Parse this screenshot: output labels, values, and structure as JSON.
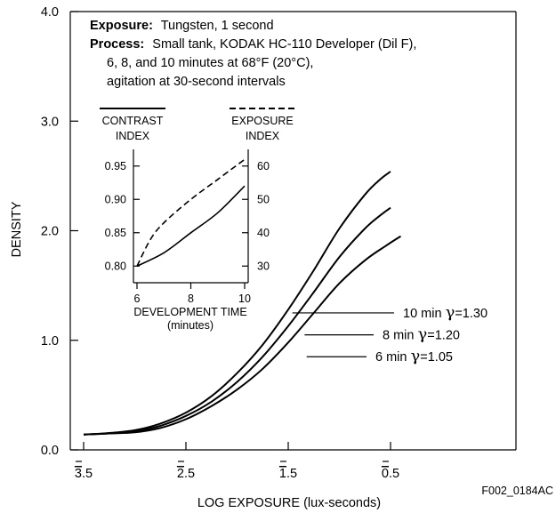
{
  "chart_data": {
    "type": "line",
    "xlabel": "LOG EXPOSURE (lux-seconds)",
    "ylabel": "DENSITY",
    "x_ticks": [
      {
        "value": 3.5,
        "bar": "3",
        "rest": ".5"
      },
      {
        "value": 2.5,
        "bar": "2",
        "rest": ".5"
      },
      {
        "value": 1.5,
        "bar": "1",
        "rest": ".5"
      },
      {
        "value": 0.5,
        "bar": "0",
        "rest": ".5"
      }
    ],
    "y_ticks": [
      "0.0",
      "1.0",
      "2.0",
      "3.0",
      "4.0"
    ],
    "ylim": [
      0,
      4
    ],
    "figure_id": "F002_0184AC",
    "info": {
      "exposure_label": "Exposure:",
      "exposure_value": "Tungsten, 1 second",
      "process_label": "Process:",
      "process_line1": "Small tank, KODAK HC-110 Developer (Dil F),",
      "process_line2": "6, 8, and 10 minutes at 68°F (20°C),",
      "process_line3": "agitation at 30-second intervals"
    },
    "series": [
      {
        "name": "10 min",
        "gamma": "=1.30",
        "label_x": 9.0,
        "anchor": [
          -1.46,
          1.25
        ],
        "points": [
          [
            -3.5,
            0.14
          ],
          [
            -3.3,
            0.15
          ],
          [
            -3.0,
            0.18
          ],
          [
            -2.75,
            0.24
          ],
          [
            -2.5,
            0.34
          ],
          [
            -2.25,
            0.49
          ],
          [
            -2.0,
            0.7
          ],
          [
            -1.75,
            0.96
          ],
          [
            -1.5,
            1.28
          ],
          [
            -1.25,
            1.64
          ],
          [
            -1.0,
            2.02
          ],
          [
            -0.75,
            2.33
          ],
          [
            -0.6,
            2.47
          ],
          [
            -0.5,
            2.54
          ]
        ]
      },
      {
        "name": "8 min",
        "gamma": "=1.20",
        "label_x": 8.8,
        "anchor": [
          -1.34,
          1.05
        ],
        "points": [
          [
            -3.5,
            0.14
          ],
          [
            -3.25,
            0.15
          ],
          [
            -3.0,
            0.17
          ],
          [
            -2.75,
            0.22
          ],
          [
            -2.5,
            0.31
          ],
          [
            -2.25,
            0.44
          ],
          [
            -2.0,
            0.62
          ],
          [
            -1.75,
            0.85
          ],
          [
            -1.5,
            1.13
          ],
          [
            -1.25,
            1.44
          ],
          [
            -1.0,
            1.76
          ],
          [
            -0.75,
            2.02
          ],
          [
            -0.6,
            2.14
          ],
          [
            -0.5,
            2.21
          ]
        ]
      },
      {
        "name": "6 min",
        "gamma": "=1.05",
        "label_x": 8.6,
        "anchor": [
          -1.32,
          0.85
        ],
        "points": [
          [
            -3.5,
            0.14
          ],
          [
            -3.25,
            0.15
          ],
          [
            -3.0,
            0.16
          ],
          [
            -2.75,
            0.2
          ],
          [
            -2.5,
            0.28
          ],
          [
            -2.25,
            0.4
          ],
          [
            -2.0,
            0.55
          ],
          [
            -1.75,
            0.74
          ],
          [
            -1.5,
            0.98
          ],
          [
            -1.25,
            1.25
          ],
          [
            -1.0,
            1.52
          ],
          [
            -0.75,
            1.73
          ],
          [
            -0.55,
            1.86
          ],
          [
            -0.4,
            1.95
          ]
        ]
      }
    ],
    "inset": {
      "legend_solid": "CONTRAST",
      "legend_solid2": "INDEX",
      "legend_dash": "EXPOSURE",
      "legend_dash2": "INDEX",
      "xlabel": "DEVELOPMENT TIME",
      "xlabel2": "(minutes)",
      "x_ticks": [
        "6",
        "8",
        "10"
      ],
      "left_ticks": [
        "0.80",
        "0.85",
        "0.90",
        "0.95"
      ],
      "right_ticks": [
        "30",
        "40",
        "50",
        "60"
      ],
      "xlim": [
        6,
        10
      ],
      "left_ylim": [
        0.775,
        0.975
      ],
      "right_ylim": [
        25,
        65
      ],
      "contrast_index": [
        [
          6,
          0.8
        ],
        [
          7,
          0.82
        ],
        [
          8,
          0.85
        ],
        [
          9,
          0.88
        ],
        [
          10,
          0.92
        ]
      ],
      "exposure_index": [
        [
          6,
          30
        ],
        [
          6.5,
          38
        ],
        [
          7,
          43
        ],
        [
          8,
          50
        ],
        [
          9,
          56
        ],
        [
          10,
          62
        ]
      ]
    }
  }
}
